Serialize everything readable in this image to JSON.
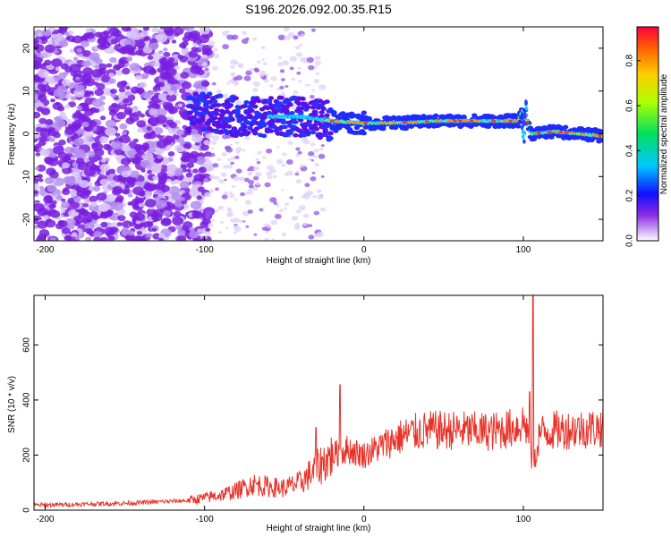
{
  "chart_data": [
    {
      "type": "heatmap",
      "title": "S196.2026.092.00.35.R15",
      "xlabel": "Height of straight line (km)",
      "ylabel": "Frequency (Hz)",
      "xlim": [
        -207,
        150
      ],
      "ylim": [
        -25,
        25
      ],
      "xticks": [
        -200,
        -100,
        0,
        100
      ],
      "yticks": [
        -20,
        -10,
        0,
        10,
        20
      ],
      "ridge": [
        {
          "x": -100,
          "y": 5
        },
        {
          "x": -80,
          "y": 4
        },
        {
          "x": -60,
          "y": 4
        },
        {
          "x": -40,
          "y": 4
        },
        {
          "x": -20,
          "y": 3
        },
        {
          "x": 0,
          "y": 2.5
        },
        {
          "x": 20,
          "y": 2.5
        },
        {
          "x": 50,
          "y": 3
        },
        {
          "x": 80,
          "y": 3
        },
        {
          "x": 97,
          "y": 3
        },
        {
          "x": 100,
          "y": 5.5
        },
        {
          "x": 105,
          "y": 0
        },
        {
          "x": 120,
          "y": 0.5
        },
        {
          "x": 150,
          "y": -0.5
        }
      ],
      "colorbar": {
        "label": "Normalized spectral amplitude",
        "range": [
          0,
          0.95
        ],
        "ticks": [
          "0.0",
          "0.2",
          "0.4",
          "0.6",
          "0.8"
        ]
      }
    },
    {
      "type": "line",
      "xlabel": "Height of straight line (km)",
      "ylabel": "SNR (10 * v/v)",
      "xlim": [
        -207,
        150
      ],
      "ylim": [
        0,
        780
      ],
      "xticks": [
        -200,
        -100,
        0,
        100
      ],
      "yticks": [
        0,
        200,
        400,
        600
      ],
      "series": [
        {
          "name": "SNR",
          "color": "#e8332a",
          "x": [
            -207,
            -150,
            -110,
            -90,
            -80,
            -70,
            -60,
            -50,
            -40,
            -30,
            -20,
            -10,
            0,
            10,
            20,
            30,
            40,
            60,
            80,
            95,
            100,
            102,
            104,
            106,
            108,
            110,
            120,
            135,
            150
          ],
          "y": [
            18,
            25,
            35,
            55,
            70,
            95,
            85,
            80,
            100,
            150,
            200,
            220,
            200,
            230,
            260,
            280,
            290,
            290,
            285,
            300,
            320,
            300,
            250,
            150,
            200,
            280,
            290,
            295,
            300
          ],
          "spikes": [
            {
              "x": -15,
              "y": 455
            },
            {
              "x": -30,
              "y": 300
            },
            {
              "x": 106,
              "y": 780
            },
            {
              "x": 104,
              "y": 430
            }
          ]
        }
      ]
    }
  ]
}
